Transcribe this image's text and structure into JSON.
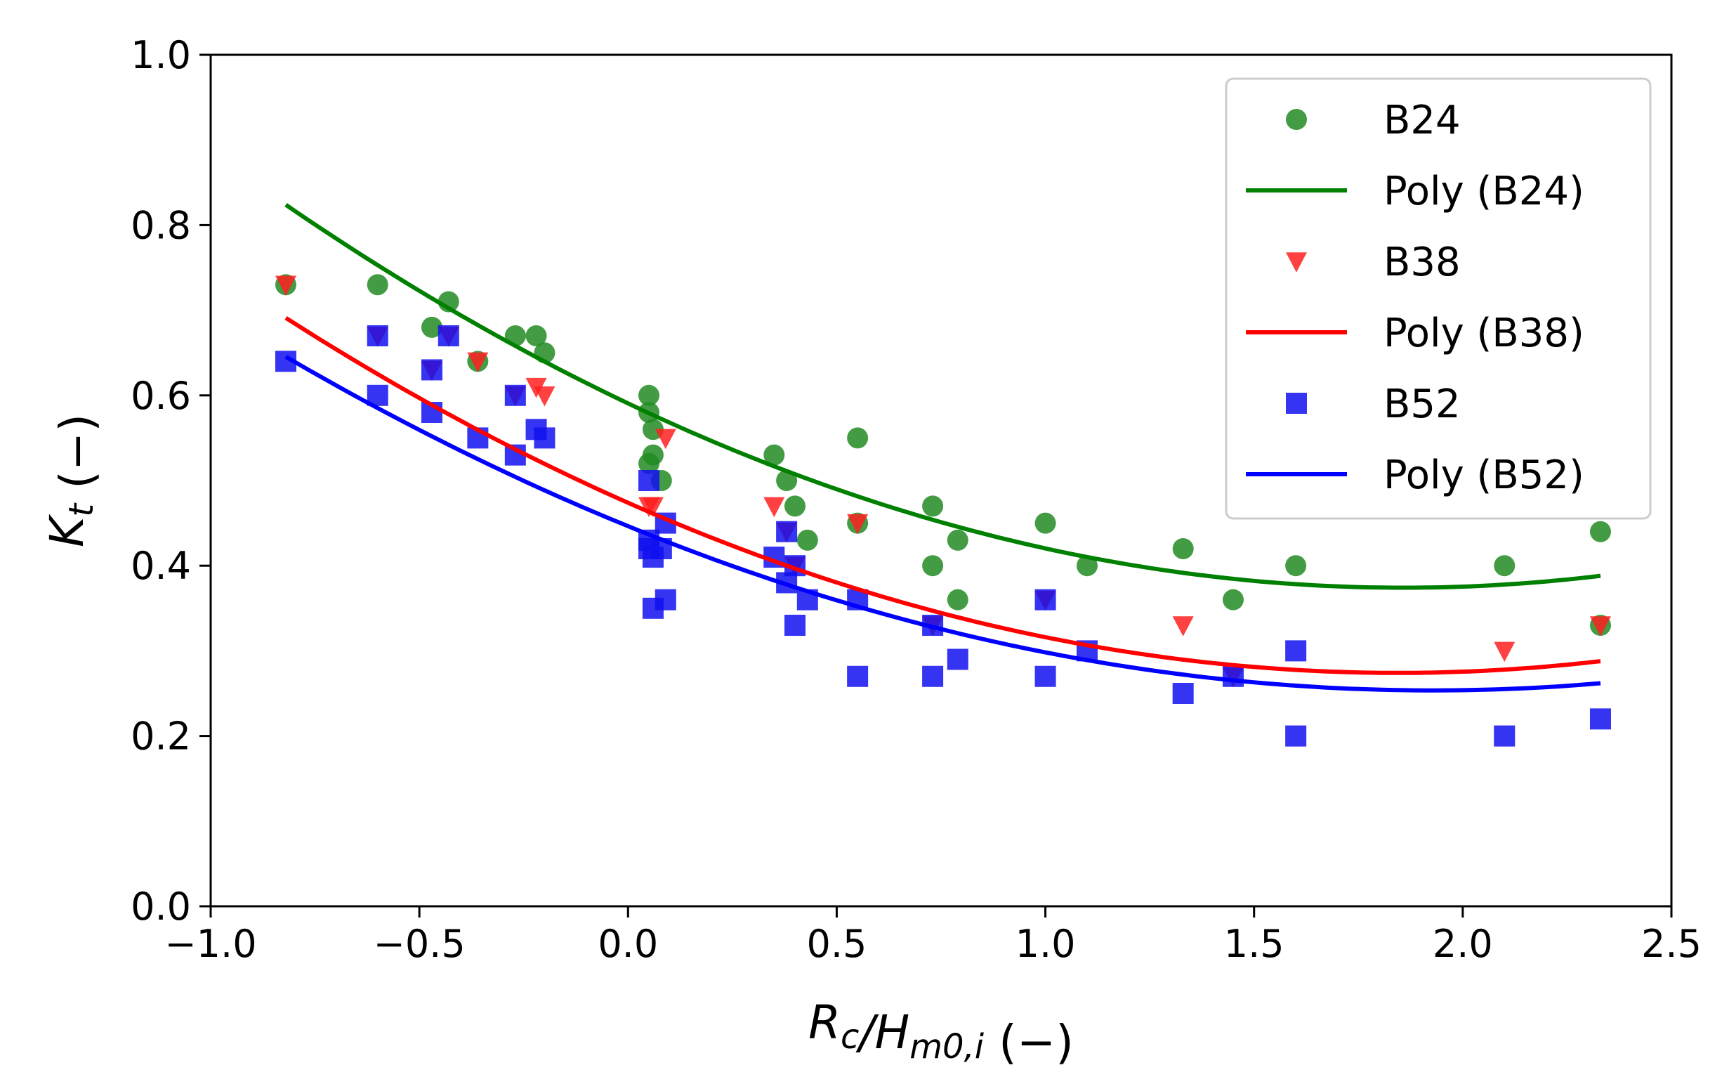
{
  "chart_data": {
    "type": "scatter",
    "xlabel": "R_c/H_{m0,i} (−)",
    "ylabel": "K_t (−)",
    "xlim": [
      -1.0,
      2.5
    ],
    "ylim": [
      0.0,
      1.0
    ],
    "xticks": [
      -1.0,
      -0.5,
      0.0,
      0.5,
      1.0,
      1.5,
      2.0,
      2.5
    ],
    "xtick_labels": [
      "−1.0",
      "−0.5",
      "0.0",
      "0.5",
      "1.0",
      "1.5",
      "2.0",
      "2.5"
    ],
    "yticks": [
      0.0,
      0.2,
      0.4,
      0.6,
      0.8,
      1.0
    ],
    "ytick_labels": [
      "0.0",
      "0.2",
      "0.4",
      "0.6",
      "0.8",
      "1.0"
    ],
    "grid": false,
    "legend_position": "top-right",
    "series": [
      {
        "name": "B24",
        "kind": "scatter",
        "marker": "circle",
        "color": "#228B22",
        "x": [
          -0.82,
          -0.6,
          -0.47,
          -0.43,
          -0.36,
          -0.27,
          -0.22,
          -0.2,
          0.05,
          0.05,
          0.06,
          0.06,
          0.05,
          0.08,
          0.35,
          0.38,
          0.4,
          0.43,
          0.55,
          0.55,
          0.73,
          0.73,
          0.79,
          0.79,
          1.0,
          1.1,
          1.33,
          1.45,
          1.6,
          2.1,
          2.33,
          2.33
        ],
        "y": [
          0.73,
          0.73,
          0.68,
          0.71,
          0.64,
          0.67,
          0.67,
          0.65,
          0.6,
          0.58,
          0.56,
          0.53,
          0.52,
          0.5,
          0.53,
          0.5,
          0.47,
          0.43,
          0.55,
          0.45,
          0.47,
          0.4,
          0.43,
          0.36,
          0.45,
          0.4,
          0.42,
          0.36,
          0.4,
          0.4,
          0.44,
          0.33
        ]
      },
      {
        "name": "Poly (B24)",
        "kind": "line",
        "color": "#008000",
        "coeffs": [
          0.0627,
          -0.233,
          0.5906
        ],
        "x_range": [
          -0.82,
          2.33
        ]
      },
      {
        "name": "B38",
        "kind": "scatter",
        "marker": "triangle-down",
        "color": "#FF2020",
        "x": [
          -0.82,
          -0.6,
          -0.47,
          -0.43,
          -0.36,
          -0.27,
          -0.22,
          -0.2,
          0.05,
          0.06,
          0.09,
          0.35,
          0.38,
          0.4,
          0.55,
          0.73,
          1.0,
          1.33,
          1.45,
          2.1,
          2.33
        ],
        "y": [
          0.73,
          0.67,
          0.63,
          0.67,
          0.64,
          0.6,
          0.61,
          0.6,
          0.47,
          0.47,
          0.55,
          0.47,
          0.44,
          0.4,
          0.45,
          0.33,
          0.36,
          0.33,
          0.27,
          0.3,
          0.33
        ]
      },
      {
        "name": "Poly (B38)",
        "kind": "line",
        "color": "#FF0000",
        "coeffs": [
          0.0587,
          -0.2166,
          0.4739
        ],
        "x_range": [
          -0.82,
          2.33
        ]
      },
      {
        "name": "B52",
        "kind": "scatter",
        "marker": "square",
        "color": "#1010F0",
        "x": [
          -0.82,
          -0.6,
          -0.6,
          -0.47,
          -0.47,
          -0.43,
          -0.36,
          -0.27,
          -0.27,
          -0.22,
          -0.2,
          0.05,
          0.05,
          0.05,
          0.06,
          0.06,
          0.08,
          0.09,
          0.09,
          0.35,
          0.38,
          0.38,
          0.4,
          0.4,
          0.43,
          0.55,
          0.55,
          0.73,
          0.73,
          0.79,
          1.0,
          1.0,
          1.1,
          1.33,
          1.45,
          1.6,
          1.6,
          2.1,
          2.33
        ],
        "y": [
          0.64,
          0.67,
          0.6,
          0.63,
          0.58,
          0.67,
          0.55,
          0.6,
          0.53,
          0.56,
          0.55,
          0.5,
          0.43,
          0.42,
          0.41,
          0.35,
          0.42,
          0.45,
          0.36,
          0.41,
          0.44,
          0.38,
          0.4,
          0.33,
          0.36,
          0.36,
          0.27,
          0.33,
          0.27,
          0.29,
          0.36,
          0.27,
          0.3,
          0.25,
          0.27,
          0.3,
          0.2,
          0.2,
          0.22
        ]
      },
      {
        "name": "Poly (B52)",
        "kind": "line",
        "color": "#0000FF",
        "coeffs": [
          0.0519,
          -0.2001,
          0.4464
        ],
        "x_range": [
          -0.82,
          2.33
        ]
      }
    ]
  }
}
